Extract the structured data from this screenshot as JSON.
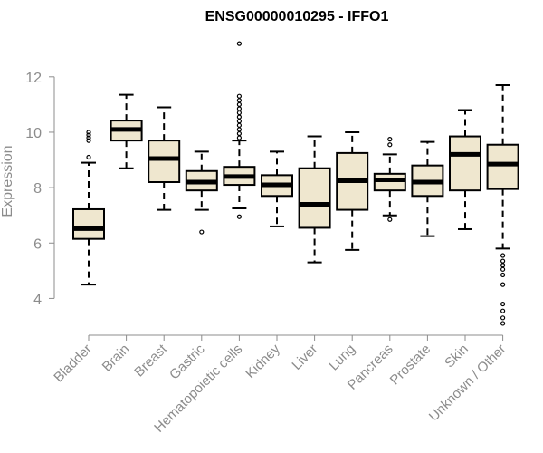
{
  "chart_data": {
    "type": "box",
    "title": "ENSG00000010295 - IFFO1",
    "ylabel": "Expression",
    "xlabel": "",
    "ylim": [
      3.0,
      13.4
    ],
    "yticks": [
      4,
      6,
      8,
      10,
      12
    ],
    "box_fill": "#efe7cf",
    "box_stroke": "#000000",
    "grid": false,
    "legend": false,
    "categories": [
      "Bladder",
      "Brain",
      "Breast",
      "Gastric",
      "Hematopoietic cells",
      "Kidney",
      "Liver",
      "Lung",
      "Pancreas",
      "Prostate",
      "Skin",
      "Unknown / Other"
    ],
    "boxes": [
      {
        "whisker_low": 4.5,
        "q1": 6.15,
        "median": 6.52,
        "q3": 7.22,
        "whisker_high": 8.9,
        "outliers": [
          9.1,
          9.7,
          9.8,
          9.9,
          10.0
        ]
      },
      {
        "whisker_low": 8.7,
        "q1": 9.7,
        "median": 10.1,
        "q3": 10.42,
        "whisker_high": 11.35,
        "outliers": []
      },
      {
        "whisker_low": 7.2,
        "q1": 8.2,
        "median": 9.05,
        "q3": 9.7,
        "whisker_high": 10.9,
        "outliers": []
      },
      {
        "whisker_low": 7.2,
        "q1": 7.9,
        "median": 8.2,
        "q3": 8.6,
        "whisker_high": 9.3,
        "outliers": [
          6.4
        ]
      },
      {
        "whisker_low": 7.25,
        "q1": 8.1,
        "median": 8.4,
        "q3": 8.75,
        "whisker_high": 9.7,
        "outliers": [
          6.95,
          9.8,
          9.95,
          10.1,
          10.25,
          10.4,
          10.55,
          10.7,
          10.85,
          11.0,
          11.15,
          11.3,
          13.2
        ]
      },
      {
        "whisker_low": 6.6,
        "q1": 7.7,
        "median": 8.1,
        "q3": 8.45,
        "whisker_high": 9.3,
        "outliers": []
      },
      {
        "whisker_low": 5.3,
        "q1": 6.55,
        "median": 7.4,
        "q3": 8.7,
        "whisker_high": 9.85,
        "outliers": []
      },
      {
        "whisker_low": 5.75,
        "q1": 7.2,
        "median": 8.25,
        "q3": 9.25,
        "whisker_high": 10.0,
        "outliers": []
      },
      {
        "whisker_low": 7.0,
        "q1": 7.9,
        "median": 8.28,
        "q3": 8.5,
        "whisker_high": 9.2,
        "outliers": [
          6.85,
          9.55,
          9.75
        ]
      },
      {
        "whisker_low": 6.25,
        "q1": 7.7,
        "median": 8.2,
        "q3": 8.8,
        "whisker_high": 9.65,
        "outliers": []
      },
      {
        "whisker_low": 6.5,
        "q1": 7.9,
        "median": 9.2,
        "q3": 9.85,
        "whisker_high": 10.8,
        "outliers": []
      },
      {
        "whisker_low": 5.8,
        "q1": 7.95,
        "median": 8.85,
        "q3": 9.55,
        "whisker_high": 11.7,
        "outliers": [
          3.1,
          3.3,
          3.55,
          3.8,
          4.5,
          4.85,
          5.05,
          5.2,
          5.35,
          5.55
        ]
      }
    ]
  }
}
